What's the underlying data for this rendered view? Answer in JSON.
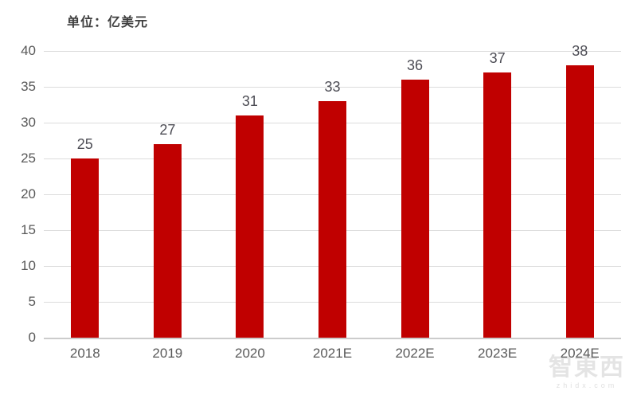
{
  "header": {
    "unit_label": "单位：亿美元"
  },
  "watermark": {
    "logo_text": "智東西",
    "site_text": "zhidx.com"
  },
  "colors": {
    "bar": "#c00000",
    "gridline": "#dcdcdc",
    "axis_line": "#cccccc",
    "axis_label": "#595959",
    "data_label": "#4d4d55"
  },
  "chart_data": {
    "type": "bar",
    "title": "单位：亿美元",
    "categories": [
      "2018",
      "2019",
      "2020",
      "2021E",
      "2022E",
      "2023E",
      "2024E"
    ],
    "values": [
      25,
      27,
      31,
      33,
      36,
      37,
      38
    ],
    "xlabel": "",
    "ylabel": "",
    "ylim": [
      0,
      40
    ],
    "ytick_interval": 5,
    "yticks": [
      0,
      5,
      10,
      15,
      20,
      25,
      30,
      35,
      40
    ],
    "grid": true,
    "legend_position": "none",
    "data_labels": "outside-end"
  }
}
